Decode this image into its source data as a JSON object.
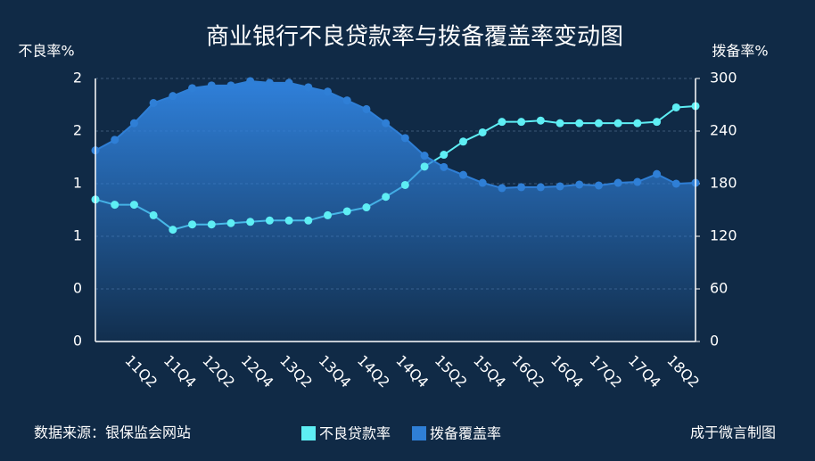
{
  "chart_data": {
    "type": "line-area",
    "title": "商业银行不良贷款率与拨备覆盖率变动图",
    "y_label": "不良率%",
    "y2_label": "拨备率%",
    "source": "数据来源：银保监会网站",
    "credit": "成于微言制图",
    "categories": [
      null,
      null,
      "11Q2",
      null,
      "11Q4",
      null,
      "12Q2",
      null,
      "12Q4",
      null,
      "13Q2",
      null,
      "13Q4",
      null,
      "14Q2",
      null,
      "14Q4",
      null,
      "15Q2",
      null,
      "15Q4",
      null,
      "16Q2",
      null,
      "16Q4",
      null,
      "17Q2",
      null,
      "17Q4",
      null,
      "18Q2",
      null
    ],
    "series": [
      {
        "name": "不良贷款率",
        "color": "#5eeef4",
        "axis": "y",
        "values": [
          1.08,
          1.04,
          1.04,
          0.96,
          0.85,
          0.89,
          0.89,
          0.9,
          0.91,
          0.92,
          0.92,
          0.92,
          0.96,
          0.99,
          1.02,
          1.1,
          1.19,
          1.33,
          1.42,
          1.52,
          1.59,
          1.67,
          1.67,
          1.68,
          1.66,
          1.66,
          1.66,
          1.66,
          1.66,
          1.67,
          1.78,
          1.79
        ]
      },
      {
        "name": "拨备覆盖率",
        "color": "#2f7fd6",
        "axis": "y2",
        "values": [
          218,
          230,
          249,
          272,
          280,
          289,
          292,
          292,
          297,
          295,
          295,
          290,
          285,
          275,
          265,
          249,
          232,
          212,
          199,
          190,
          181,
          175,
          176,
          176,
          177,
          179,
          178,
          181,
          182,
          191,
          180,
          181
        ]
      }
    ],
    "ylim": [
      0,
      2
    ],
    "yticks": [
      0,
      {
        "value": 0.4,
        "label": "0"
      },
      {
        "value": 0.8,
        "label": "1"
      },
      {
        "value": 1.2,
        "label": "1"
      },
      {
        "value": 1.6,
        "label": "2"
      },
      {
        "value": 2.0,
        "label": "2"
      }
    ],
    "y2lim": [
      0,
      300
    ],
    "y2ticks": [
      0,
      60,
      120,
      180,
      240,
      300
    ],
    "grid": true
  }
}
